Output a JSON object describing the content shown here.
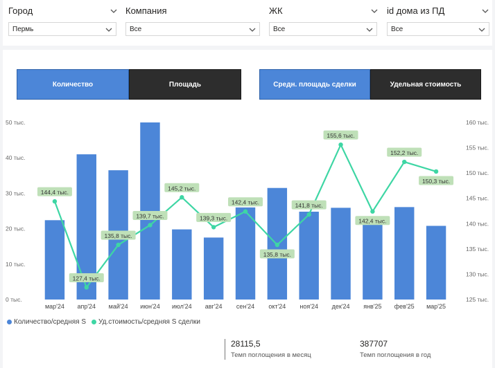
{
  "filters": [
    {
      "label": "Город",
      "value": "Пермь"
    },
    {
      "label": "Компания",
      "value": "Все"
    },
    {
      "label": "ЖК",
      "value": "Все"
    },
    {
      "label": "id дома из ПД",
      "value": "Все"
    }
  ],
  "tabs": [
    {
      "label": "Количество",
      "active": true
    },
    {
      "label": "Площадь",
      "active": false
    },
    {
      "label": "Средн. площадь сделки",
      "active": true
    },
    {
      "label": "Удельная стоимость",
      "active": false
    }
  ],
  "colors": {
    "bar": "#4c86d8",
    "line": "#3ed6a4",
    "label_bg": "#bfe0b8",
    "active_tab": "#4c86d8",
    "inactive_tab": "#2d2d2d"
  },
  "chart_data": {
    "type": "bar",
    "categories": [
      "мар'24",
      "апр'24",
      "май'24",
      "июн'24",
      "июл'24",
      "авг'24",
      "сен'24",
      "окт'24",
      "ноя'24",
      "дек'24",
      "янв'25",
      "фев'25",
      "мар'25"
    ],
    "series": [
      {
        "name": "Количество/средняя S",
        "type": "bar",
        "axis": "left",
        "values": [
          22400,
          41000,
          36500,
          50000,
          19800,
          17500,
          26000,
          31500,
          24800,
          25900,
          22500,
          26100,
          20800
        ]
      },
      {
        "name": "Уд.стоимость/средняя S сделки",
        "type": "line",
        "axis": "right",
        "values": [
          144.4,
          127.4,
          135.8,
          139.7,
          145.2,
          139.3,
          142.4,
          135.8,
          141.8,
          155.6,
          142.4,
          152.2,
          150.3
        ],
        "labels": [
          "144,4 тыс.",
          "127,4 тыс.",
          "135,8 тыс.",
          "139,7 тыс.",
          "145,2 тыс.",
          "139,3 тыс.",
          "142,4 тыс.",
          "135,8 тыс.",
          "141,8 тыс.",
          "155,6 тыс.",
          "142,4 тыс.",
          "152,2 тыс.",
          "150,3 тыс."
        ]
      }
    ],
    "ylim_left": [
      0,
      50000
    ],
    "ylim_right": [
      125,
      160
    ],
    "left_ticks": [
      "0 тыс.",
      "10 тыс.",
      "20 тыс.",
      "30 тыс.",
      "40 тыс.",
      "50 тыс."
    ],
    "right_ticks": [
      "125 тыс.",
      "130 тыс.",
      "135 тыс.",
      "140 тыс.",
      "145 тыс.",
      "150 тыс.",
      "155 тыс.",
      "160 тыс."
    ],
    "legend_position": "bottom-left",
    "grid": false
  },
  "legend": [
    "Количество/средняя S",
    "Уд.стоимость/средняя S сделки"
  ],
  "kpis": [
    {
      "value": "28115,5",
      "label": "Темп поглощения в месяц"
    },
    {
      "value": "387707",
      "label": "Темп поглощения в год"
    }
  ]
}
